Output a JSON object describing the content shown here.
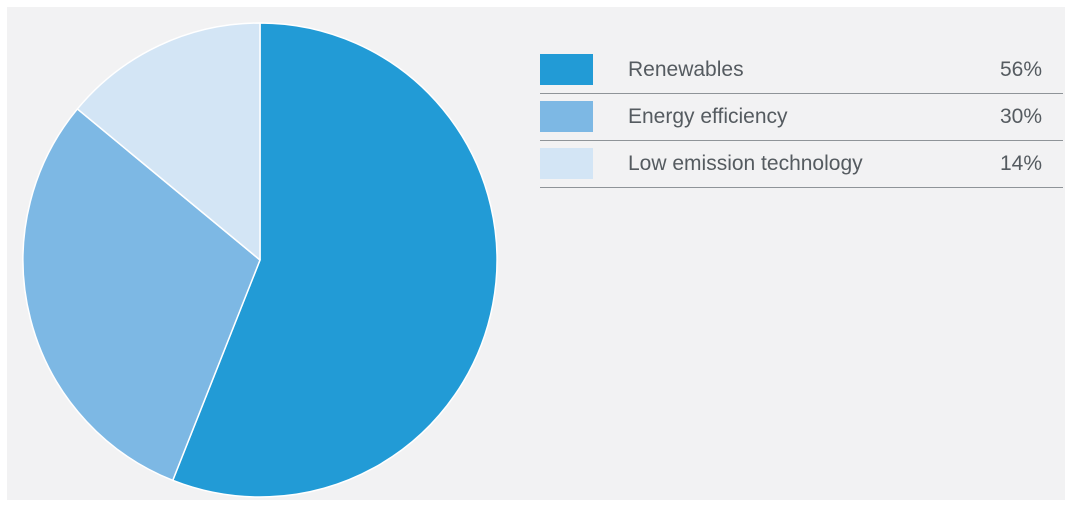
{
  "chart_data": {
    "type": "pie",
    "title": "",
    "slices": [
      {
        "label": "Renewables",
        "value": 56,
        "value_label": "56%",
        "color": "#229bd6"
      },
      {
        "label": "Energy efficiency",
        "value": 30,
        "value_label": "30%",
        "color": "#7db8e4"
      },
      {
        "label": "Low emission technology",
        "value": 14,
        "value_label": "14%",
        "color": "#d3e5f5"
      }
    ],
    "legend_position": "right",
    "start_angle": "top",
    "direction": "clockwise"
  },
  "colors": {
    "background": "#f2f2f3",
    "slice_stroke": "#ffffff",
    "legend_text": "#555b60",
    "legend_rule": "#8f9498"
  }
}
